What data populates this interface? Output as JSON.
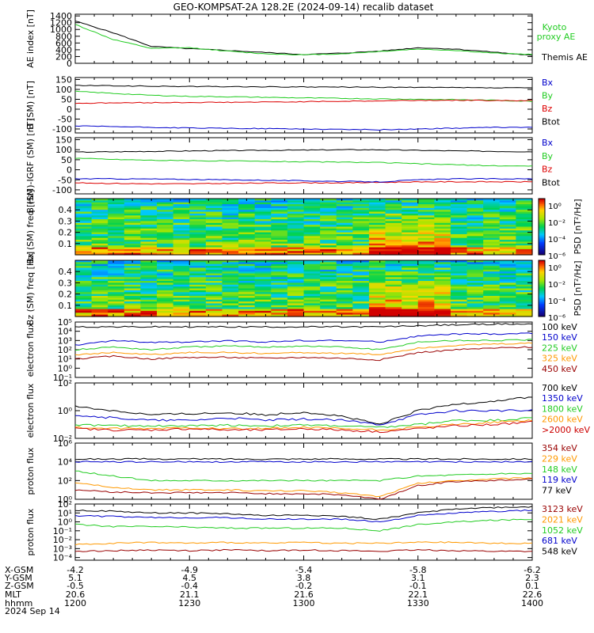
{
  "title": "GEO-KOMPSAT-2A 128.2E (2024-09-14) recalib dataset",
  "panels": [
    {
      "id": "ae",
      "ylabel": "AE index [nT]",
      "yticks": [
        "0",
        "200",
        "400",
        "600",
        "800",
        "1000",
        "1200",
        "1400"
      ],
      "ymin": 0,
      "ymax": 1450,
      "log": false,
      "legend": [
        {
          "text": "Kyoto proxy AE",
          "color": "#22cc22"
        },
        {
          "text": "Themis AE",
          "color": "#000000"
        }
      ]
    },
    {
      "id": "b_sm",
      "ylabel": "B (SM) [nT]",
      "yticks": [
        "-100",
        "-50",
        "0",
        "50",
        "100",
        "150"
      ],
      "ymin": -120,
      "ymax": 160,
      "log": false,
      "legend": [
        {
          "text": "Bx",
          "color": "#0000cc"
        },
        {
          "text": "By",
          "color": "#22cc22"
        },
        {
          "text": "Bz",
          "color": "#dd0000"
        },
        {
          "text": "Btot",
          "color": "#000000"
        }
      ]
    },
    {
      "id": "b_igrf",
      "ylabel": "B (SM)-IGRF (SM) [nT]",
      "yticks": [
        "-100",
        "-50",
        "0",
        "50",
        "100",
        "150"
      ],
      "ymin": -120,
      "ymax": 160,
      "log": false,
      "legend": [
        {
          "text": "Bx",
          "color": "#0000cc"
        },
        {
          "text": "By",
          "color": "#22cc22"
        },
        {
          "text": "Bz",
          "color": "#dd0000"
        },
        {
          "text": "Btot",
          "color": "#000000"
        }
      ]
    },
    {
      "id": "bx_spec",
      "ylabel": "Bx (SM) freq [Hz]",
      "yticks": [
        "0.1",
        "0.2",
        "0.3",
        "0.4"
      ],
      "ymin": 0.0,
      "ymax": 0.5,
      "colorbar_label": "PSD [nT²/Hz]",
      "colorbar_ticks": [
        "10⁰",
        "10⁻²",
        "10⁻⁴",
        "10⁻⁶"
      ]
    },
    {
      "id": "bz_spec",
      "ylabel": "Bz (SM) freq [Hz]",
      "yticks": [
        "0.1",
        "0.2",
        "0.3",
        "0.4"
      ],
      "ymin": 0.0,
      "ymax": 0.5,
      "colorbar_label": "PSD [nT²/Hz]",
      "colorbar_ticks": [
        "10⁰",
        "10⁻²",
        "10⁻⁴",
        "10⁻⁶"
      ]
    },
    {
      "id": "e_flux1",
      "ylabel": "electron flux",
      "yticks": [
        "10⁻¹",
        "10⁰",
        "10¹",
        "10²",
        "10³",
        "10⁴",
        "10⁵"
      ],
      "ymin": -1,
      "ymax": 5,
      "log": true,
      "legend": [
        {
          "text": "100 keV",
          "color": "#000000"
        },
        {
          "text": "150 keV",
          "color": "#0000cc"
        },
        {
          "text": "225 keV",
          "color": "#22cc22"
        },
        {
          "text": "325 keV",
          "color": "#ff9900"
        },
        {
          "text": "450 keV",
          "color": "#990000"
        }
      ]
    },
    {
      "id": "e_flux2",
      "ylabel": "electron flux",
      "yticks": [
        "10⁻²",
        "10⁰",
        "10²"
      ],
      "ymin": -2,
      "ymax": 2,
      "log": true,
      "legend": [
        {
          "text": "700 keV",
          "color": "#000000"
        },
        {
          "text": "1350 keV",
          "color": "#0000cc"
        },
        {
          "text": "1800 keV",
          "color": "#22cc22"
        },
        {
          "text": "2600 keV",
          "color": "#ff9900"
        },
        {
          "text": ">2000 keV",
          "color": "#cc0000"
        }
      ]
    },
    {
      "id": "p_flux1",
      "ylabel": "proton flux",
      "yticks": [
        "10⁰",
        "10²",
        "10⁴",
        "10⁶"
      ],
      "ymin": 0,
      "ymax": 6,
      "log": true,
      "legend": [
        {
          "text": "354 keV",
          "color": "#990000"
        },
        {
          "text": "229 keV",
          "color": "#ff9900"
        },
        {
          "text": "148 keV",
          "color": "#22cc22"
        },
        {
          "text": "119 keV",
          "color": "#0000cc"
        },
        {
          "text": "77 keV",
          "color": "#000000"
        }
      ]
    },
    {
      "id": "p_flux2",
      "ylabel": "proton flux",
      "yticks": [
        "10⁻⁴",
        "10⁻³",
        "10⁻²",
        "10⁻¹",
        "10⁰",
        "10¹",
        "10²"
      ],
      "ymin": -4.3,
      "ymax": 2,
      "log": true,
      "legend": [
        {
          "text": "3123 keV",
          "color": "#990000"
        },
        {
          "text": "2021 keV",
          "color": "#ff9900"
        },
        {
          "text": "1052 keV",
          "color": "#22cc22"
        },
        {
          "text": "681 keV",
          "color": "#0000cc"
        },
        {
          "text": "548 keV",
          "color": "#000000"
        }
      ]
    }
  ],
  "footer": {
    "row_labels": [
      "X-GSM",
      "Y-GSM",
      "Z-GSM",
      "MLT",
      "hhmm",
      "2024 Sep 14"
    ],
    "columns": [
      {
        "xgsm": "-4.2",
        "ygsm": "5.1",
        "zgsm": "-0.5",
        "mlt": "20.6",
        "hhmm": "1200"
      },
      {
        "xgsm": "-4.9",
        "ygsm": "4.5",
        "zgsm": "-0.4",
        "mlt": "21.1",
        "hhmm": "1230"
      },
      {
        "xgsm": "-5.4",
        "ygsm": "3.8",
        "zgsm": "-0.2",
        "mlt": "21.6",
        "hhmm": "1300"
      },
      {
        "xgsm": "-5.8",
        "ygsm": "3.1",
        "zgsm": "-0.1",
        "mlt": "22.1",
        "hhmm": "1330"
      },
      {
        "xgsm": "-6.2",
        "ygsm": "2.3",
        "zgsm": "0.1",
        "mlt": "22.6",
        "hhmm": "1400"
      }
    ]
  },
  "chart_data": {
    "type": "line",
    "title": "GEO-KOMPSAT-2A 128.2E (2024-09-14) recalib dataset",
    "x": [
      "1200",
      "1210",
      "1220",
      "1230",
      "1240",
      "1250",
      "1300",
      "1310",
      "1320",
      "1330",
      "1340",
      "1350",
      "1400"
    ],
    "xlabel": "hhmm",
    "panels": [
      {
        "id": "ae",
        "series": [
          {
            "name": "Themis AE",
            "values": [
              1250,
              900,
              500,
              430,
              380,
              320,
              260,
              300,
              360,
              460,
              420,
              330,
              230
            ]
          },
          {
            "name": "Kyoto proxy AE",
            "values": [
              1150,
              700,
              440,
              460,
              360,
              280,
              250,
              280,
              350,
              420,
              380,
              300,
              260
            ]
          }
        ]
      },
      {
        "id": "b_sm",
        "series": [
          {
            "name": "Btot",
            "values": [
              120,
              118,
              116,
              115,
              114,
              113,
              112,
              112,
              111,
              110,
              109,
              108,
              108
            ]
          },
          {
            "name": "By",
            "values": [
              90,
              80,
              70,
              65,
              63,
              60,
              57,
              55,
              52,
              50,
              48,
              45,
              40
            ]
          },
          {
            "name": "Bz",
            "values": [
              30,
              32,
              33,
              34,
              35,
              36,
              38,
              40,
              42,
              45,
              45,
              44,
              43
            ]
          },
          {
            "name": "Bx",
            "values": [
              -85,
              -88,
              -92,
              -95,
              -97,
              -98,
              -100,
              -102,
              -104,
              -100,
              -96,
              -92,
              -92
            ]
          }
        ]
      },
      {
        "id": "b_igrf",
        "series": [
          {
            "name": "Btot",
            "values": [
              88,
              90,
              92,
              94,
              96,
              97,
              98,
              100,
              100,
              97,
              94,
              92,
              90
            ]
          },
          {
            "name": "By",
            "values": [
              58,
              52,
              48,
              45,
              44,
              42,
              40,
              38,
              36,
              30,
              25,
              20,
              18
            ]
          },
          {
            "name": "Bz",
            "values": [
              -65,
              -68,
              -70,
              -70,
              -68,
              -66,
              -65,
              -65,
              -63,
              -60,
              -60,
              -60,
              -60
            ]
          },
          {
            "name": "Bx",
            "values": [
              -45,
              -45,
              -46,
              -48,
              -50,
              -52,
              -55,
              -58,
              -60,
              -50,
              -45,
              -45,
              -45
            ]
          }
        ]
      },
      {
        "id": "e_flux1",
        "series": [
          {
            "name": "100 keV",
            "values": [
              30000,
              30000,
              30000,
              30000,
              30000,
              30000,
              30000,
              30000,
              30000,
              40000,
              50000,
              60000,
              60000
            ]
          },
          {
            "name": "150 keV",
            "values": [
              300,
              1000,
              600,
              700,
              900,
              700,
              1000,
              1000,
              700,
              3000,
              5000,
              5000,
              6000
            ]
          },
          {
            "name": "225 keV",
            "values": [
              100,
              200,
              100,
              200,
              250,
              200,
              250,
              200,
              100,
              700,
              1000,
              1000,
              1200
            ]
          },
          {
            "name": "325 keV",
            "values": [
              30,
              50,
              30,
              50,
              50,
              40,
              50,
              40,
              30,
              150,
              300,
              400,
              500
            ]
          },
          {
            "name": "450 keV",
            "values": [
              10,
              20,
              10,
              15,
              15,
              12,
              15,
              12,
              8,
              50,
              100,
              150,
              200
            ]
          }
        ]
      },
      {
        "id": "e_flux2",
        "series": [
          {
            "name": "700 keV",
            "values": [
              2,
              1,
              0.5,
              0.6,
              0.7,
              0.5,
              0.8,
              0.4,
              0.1,
              1,
              3,
              5,
              10
            ]
          },
          {
            "name": "1350 keV",
            "values": [
              0.5,
              0.3,
              0.2,
              0.2,
              0.3,
              0.2,
              0.25,
              0.2,
              0.1,
              0.5,
              1,
              1,
              1
            ]
          },
          {
            "name": "1800 keV",
            "values": [
              0.1,
              0.08,
              0.08,
              0.08,
              0.09,
              0.08,
              0.09,
              0.08,
              0.06,
              0.1,
              0.2,
              0.2,
              0.3
            ]
          },
          {
            "name": "2600 keV",
            "values": [
              0.06,
              0.05,
              0.05,
              0.06,
              0.05,
              0.05,
              0.06,
              0.05,
              0.04,
              0.06,
              0.1,
              0.15,
              0.2
            ]
          },
          {
            "name": ">2000 keV",
            "values": [
              0.05,
              0.04,
              0.04,
              0.05,
              0.04,
              0.04,
              0.05,
              0.04,
              0.03,
              0.05,
              0.08,
              0.1,
              0.15
            ]
          }
        ]
      },
      {
        "id": "p_flux1",
        "series": [
          {
            "name": "77 keV",
            "values": [
              20000,
              20000,
              20000,
              20000,
              20000,
              20000,
              20000,
              20000,
              20000,
              20000,
              20000,
              20000,
              20000
            ]
          },
          {
            "name": "119 keV",
            "values": [
              10000,
              10000,
              10000,
              10000,
              10000,
              10000,
              10000,
              10000,
              10000,
              10000,
              10000,
              10000,
              10000
            ]
          },
          {
            "name": "148 keV",
            "values": [
              1000,
              300,
              100,
              100,
              100,
              100,
              100,
              100,
              100,
              300,
              400,
              500,
              600
            ]
          },
          {
            "name": "229 keV",
            "values": [
              50,
              20,
              10,
              10,
              10,
              8,
              8,
              5,
              2,
              50,
              100,
              150,
              200
            ]
          },
          {
            "name": "354 keV",
            "values": [
              10,
              6,
              5,
              5,
              5,
              4,
              4,
              3,
              1,
              30,
              80,
              100,
              150
            ]
          }
        ]
      },
      {
        "id": "p_flux2",
        "series": [
          {
            "name": "548 keV",
            "values": [
              20,
              15,
              10,
              10,
              8,
              5,
              6,
              4,
              2,
              10,
              30,
              40,
              50
            ]
          },
          {
            "name": "681 keV",
            "values": [
              5,
              4,
              3,
              3,
              3,
              2,
              2,
              2,
              1,
              5,
              10,
              15,
              20
            ]
          },
          {
            "name": "1052 keV",
            "values": [
              0.5,
              0.3,
              0.3,
              0.25,
              0.2,
              0.2,
              0.2,
              0.2,
              0.1,
              0.5,
              1,
              1.5,
              2
            ]
          },
          {
            "name": "2021 keV",
            "values": [
              0.003,
              0.004,
              0.005,
              0.004,
              0.005,
              0.004,
              0.005,
              0.004,
              0.004,
              0.005,
              0.005,
              0.004,
              0.004
            ]
          },
          {
            "name": "3123 keV",
            "values": [
              0.0005,
              0.0006,
              0.0007,
              0.0006,
              0.0007,
              0.0006,
              0.0007,
              0.0006,
              0.0005,
              0.0007,
              0.0006,
              0.0005,
              0.0005
            ]
          }
        ]
      }
    ]
  }
}
